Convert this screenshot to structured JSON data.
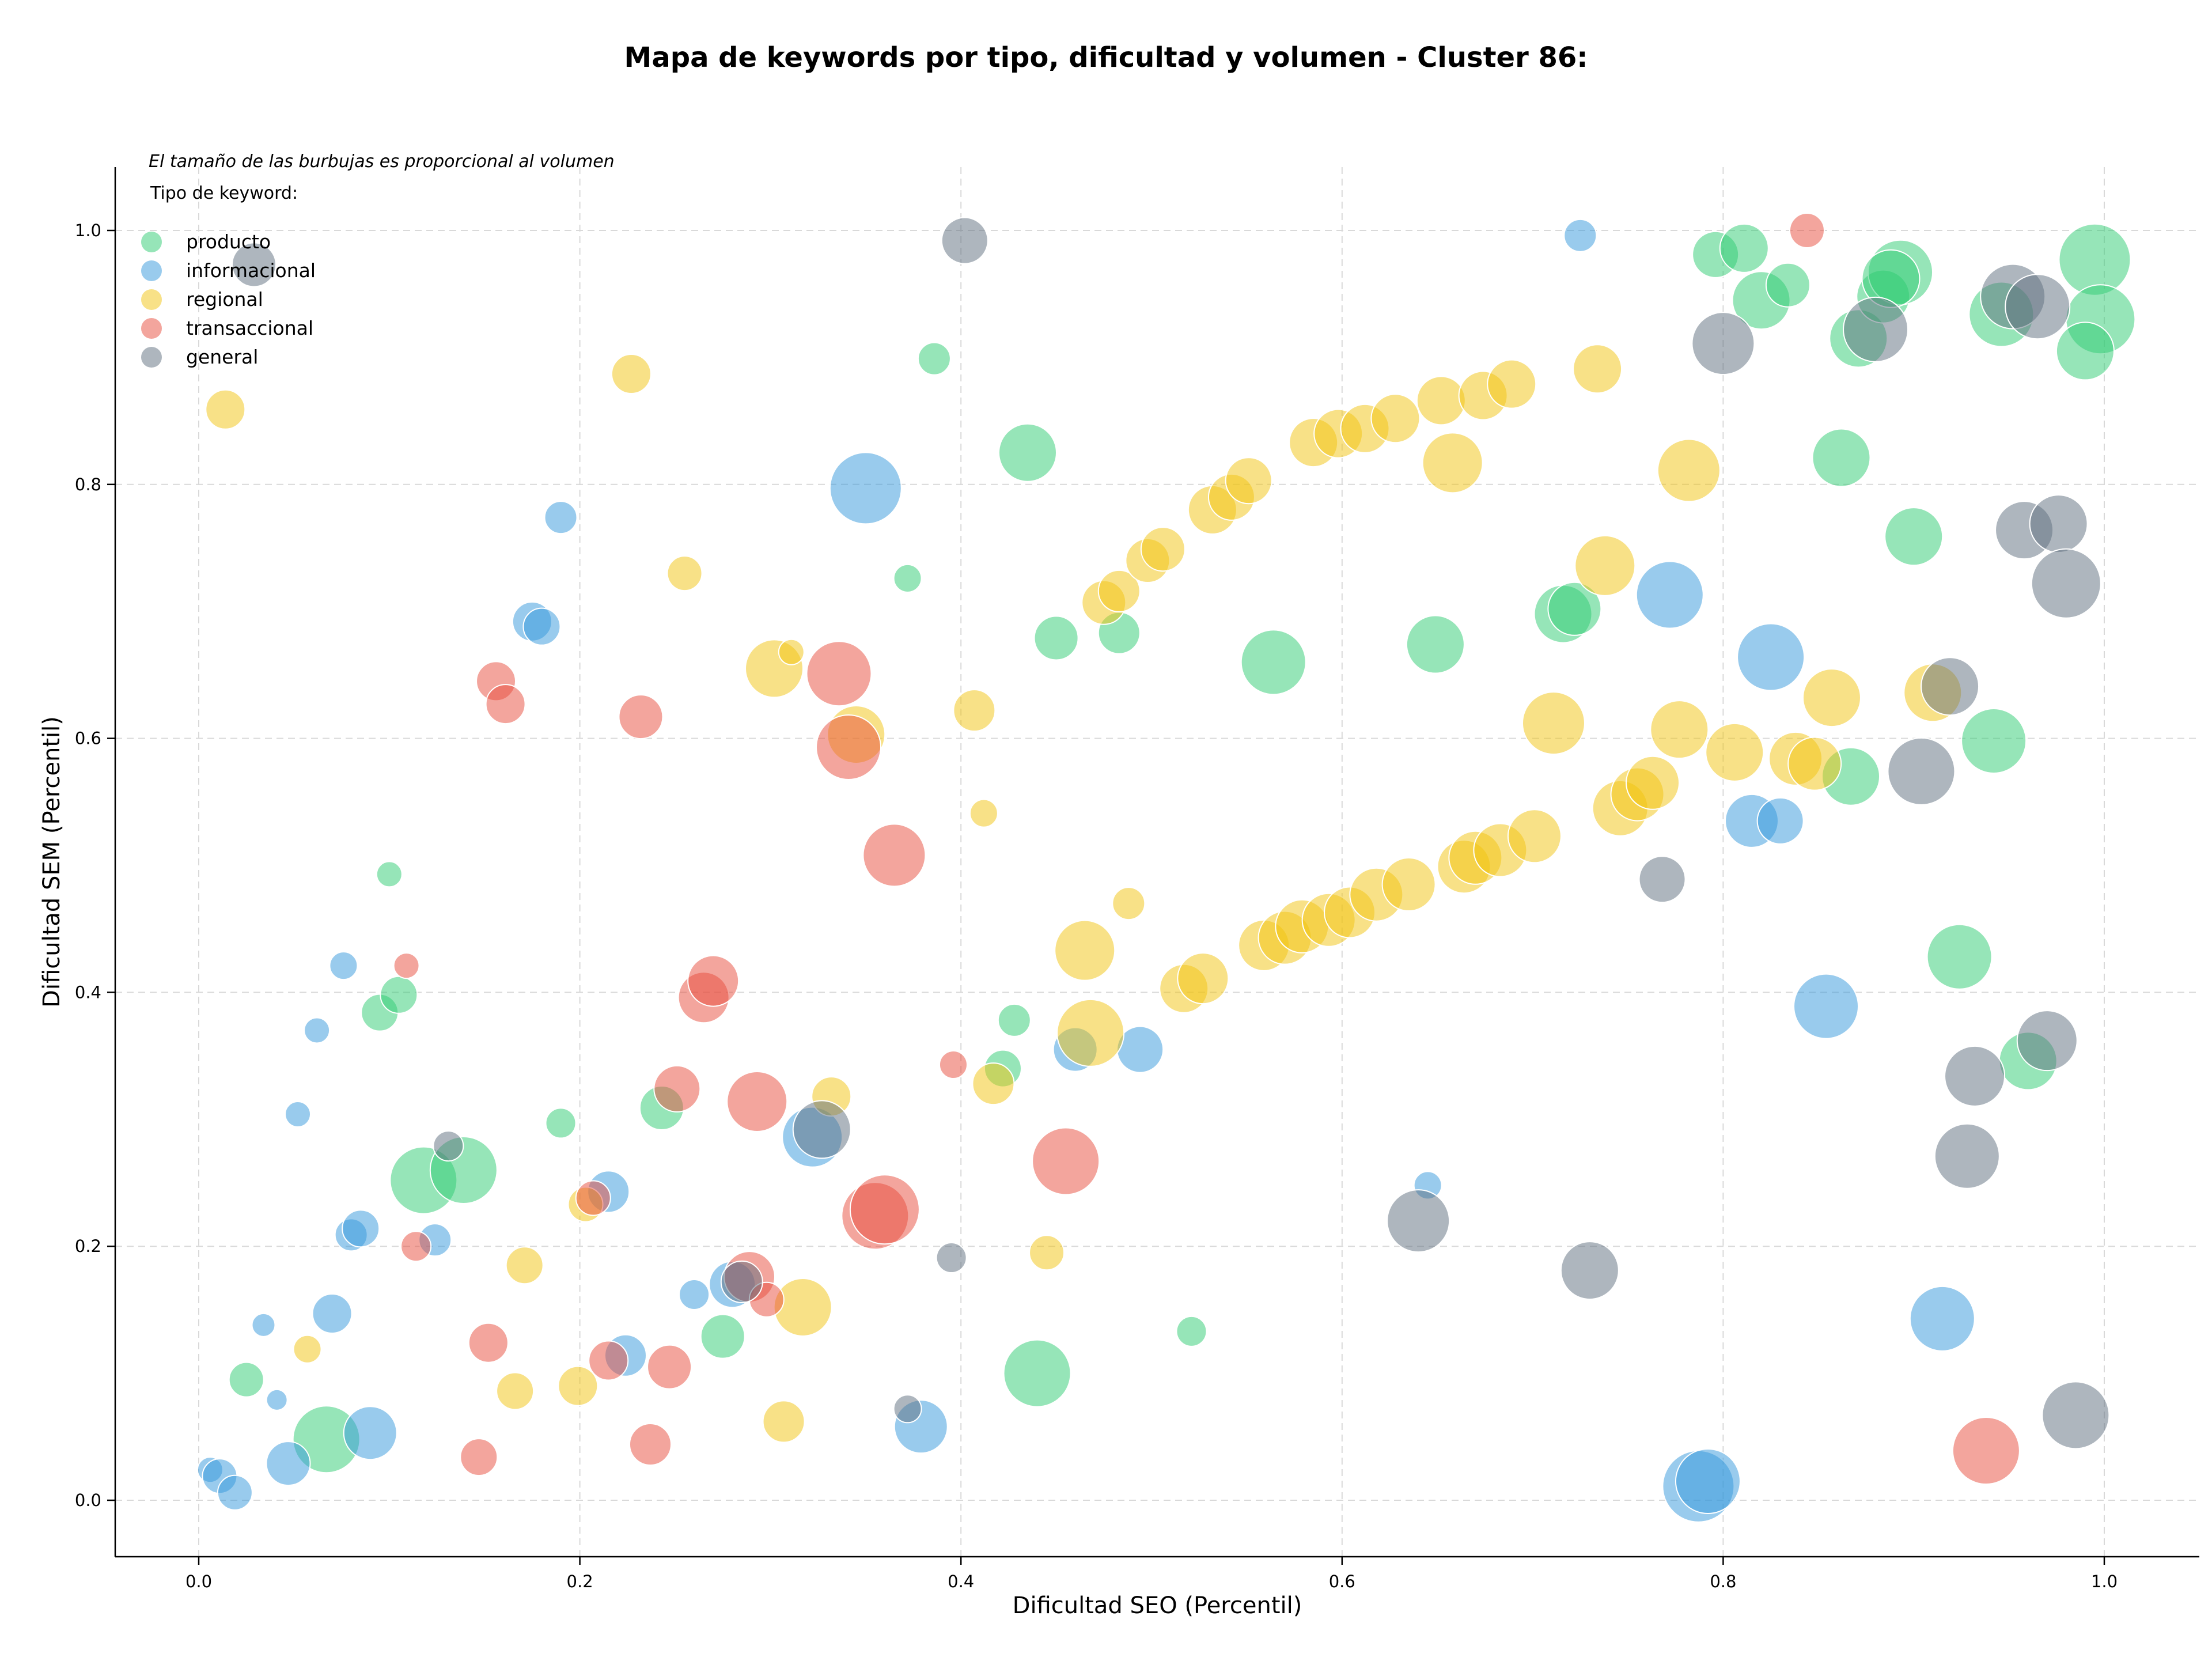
{
  "chart_data": {
    "type": "scatter",
    "title": "Mapa de keywords por tipo, dificultad y volumen - Cluster 86:",
    "xlabel": "Dificultad SEO (Percentil)",
    "ylabel": "Dificultad SEM (Percentil)",
    "xlim": [
      -0.045,
      1.05
    ],
    "ylim": [
      -0.045,
      1.05
    ],
    "xticks": [
      "0.0",
      "0.2",
      "0.4",
      "0.6",
      "0.8",
      "1.0"
    ],
    "yticks": [
      "0.0",
      "0.2",
      "0.4",
      "0.6",
      "0.8",
      "1.0"
    ],
    "grid": true,
    "note": "El tamaño de las burbujas es proporcional al volumen",
    "legend_title": "Tipo de keyword:",
    "legend_position": "top-left",
    "size_encoding": "volumen",
    "series": [
      {
        "name": "producto",
        "color": "#2ecc71",
        "points": [
          {
            "x": 0.118,
            "y": 0.252,
            "s": 58
          },
          {
            "x": 0.139,
            "y": 0.26,
            "s": 58
          },
          {
            "x": 0.067,
            "y": 0.048,
            "s": 58
          },
          {
            "x": 0.025,
            "y": 0.095,
            "s": 30
          },
          {
            "x": 0.1,
            "y": 0.493,
            "s": 22
          },
          {
            "x": 0.095,
            "y": 0.384,
            "s": 32
          },
          {
            "x": 0.105,
            "y": 0.398,
            "s": 32
          },
          {
            "x": 0.243,
            "y": 0.309,
            "s": 38
          },
          {
            "x": 0.275,
            "y": 0.129,
            "s": 38
          },
          {
            "x": 0.19,
            "y": 0.297,
            "s": 26
          },
          {
            "x": 0.386,
            "y": 0.899,
            "s": 28
          },
          {
            "x": 0.372,
            "y": 0.726,
            "s": 24
          },
          {
            "x": 0.435,
            "y": 0.825,
            "s": 50
          },
          {
            "x": 0.45,
            "y": 0.679,
            "s": 38
          },
          {
            "x": 0.483,
            "y": 0.683,
            "s": 36
          },
          {
            "x": 0.428,
            "y": 0.378,
            "s": 28
          },
          {
            "x": 0.422,
            "y": 0.34,
            "s": 32
          },
          {
            "x": 0.44,
            "y": 0.1,
            "s": 58
          },
          {
            "x": 0.521,
            "y": 0.133,
            "s": 26
          },
          {
            "x": 0.564,
            "y": 0.66,
            "s": 56
          },
          {
            "x": 0.649,
            "y": 0.674,
            "s": 50
          },
          {
            "x": 0.716,
            "y": 0.698,
            "s": 50
          },
          {
            "x": 0.722,
            "y": 0.702,
            "s": 46
          },
          {
            "x": 0.796,
            "y": 0.981,
            "s": 40
          },
          {
            "x": 0.811,
            "y": 0.986,
            "s": 42
          },
          {
            "x": 0.82,
            "y": 0.945,
            "s": 50
          },
          {
            "x": 0.834,
            "y": 0.957,
            "s": 38
          },
          {
            "x": 0.862,
            "y": 0.821,
            "s": 50
          },
          {
            "x": 0.867,
            "y": 0.57,
            "s": 50
          },
          {
            "x": 0.871,
            "y": 0.915,
            "s": 50
          },
          {
            "x": 0.884,
            "y": 0.948,
            "s": 46
          },
          {
            "x": 0.893,
            "y": 0.967,
            "s": 56
          },
          {
            "x": 0.888,
            "y": 0.962,
            "s": 50
          },
          {
            "x": 0.9,
            "y": 0.759,
            "s": 50
          },
          {
            "x": 0.924,
            "y": 0.428,
            "s": 56
          },
          {
            "x": 0.942,
            "y": 0.598,
            "s": 56
          },
          {
            "x": 0.946,
            "y": 0.934,
            "s": 56
          },
          {
            "x": 0.96,
            "y": 0.346,
            "s": 50
          },
          {
            "x": 0.995,
            "y": 0.977,
            "s": 62
          },
          {
            "x": 0.998,
            "y": 0.93,
            "s": 60
          },
          {
            "x": 0.99,
            "y": 0.905,
            "s": 50
          }
        ]
      },
      {
        "name": "informacional",
        "color": "#3498db",
        "points": [
          {
            "x": 0.006,
            "y": 0.024,
            "s": 22
          },
          {
            "x": 0.011,
            "y": 0.019,
            "s": 30
          },
          {
            "x": 0.019,
            "y": 0.006,
            "s": 30
          },
          {
            "x": 0.034,
            "y": 0.138,
            "s": 20
          },
          {
            "x": 0.041,
            "y": 0.079,
            "s": 18
          },
          {
            "x": 0.047,
            "y": 0.029,
            "s": 38
          },
          {
            "x": 0.052,
            "y": 0.304,
            "s": 22
          },
          {
            "x": 0.062,
            "y": 0.37,
            "s": 22
          },
          {
            "x": 0.07,
            "y": 0.147,
            "s": 34
          },
          {
            "x": 0.076,
            "y": 0.421,
            "s": 24
          },
          {
            "x": 0.08,
            "y": 0.209,
            "s": 28
          },
          {
            "x": 0.085,
            "y": 0.214,
            "s": 32
          },
          {
            "x": 0.09,
            "y": 0.053,
            "s": 46
          },
          {
            "x": 0.124,
            "y": 0.205,
            "s": 28
          },
          {
            "x": 0.175,
            "y": 0.692,
            "s": 34
          },
          {
            "x": 0.18,
            "y": 0.688,
            "s": 32
          },
          {
            "x": 0.19,
            "y": 0.774,
            "s": 28
          },
          {
            "x": 0.215,
            "y": 0.243,
            "s": 36
          },
          {
            "x": 0.224,
            "y": 0.114,
            "s": 36
          },
          {
            "x": 0.26,
            "y": 0.162,
            "s": 26
          },
          {
            "x": 0.28,
            "y": 0.17,
            "s": 40
          },
          {
            "x": 0.322,
            "y": 0.286,
            "s": 52
          },
          {
            "x": 0.35,
            "y": 0.797,
            "s": 62
          },
          {
            "x": 0.379,
            "y": 0.058,
            "s": 46
          },
          {
            "x": 0.46,
            "y": 0.355,
            "s": 38
          },
          {
            "x": 0.494,
            "y": 0.355,
            "s": 40
          },
          {
            "x": 0.645,
            "y": 0.248,
            "s": 24
          },
          {
            "x": 0.725,
            "y": 0.996,
            "s": 28
          },
          {
            "x": 0.772,
            "y": 0.713,
            "s": 58
          },
          {
            "x": 0.787,
            "y": 0.011,
            "s": 62
          },
          {
            "x": 0.792,
            "y": 0.015,
            "s": 56
          },
          {
            "x": 0.815,
            "y": 0.535,
            "s": 46
          },
          {
            "x": 0.83,
            "y": 0.535,
            "s": 40
          },
          {
            "x": 0.825,
            "y": 0.664,
            "s": 58
          },
          {
            "x": 0.854,
            "y": 0.389,
            "s": 56
          },
          {
            "x": 0.915,
            "y": 0.143,
            "s": 56
          }
        ]
      },
      {
        "name": "regional",
        "color": "#f1c40f",
        "points": [
          {
            "x": 0.014,
            "y": 0.859,
            "s": 34
          },
          {
            "x": 0.057,
            "y": 0.119,
            "s": 24
          },
          {
            "x": 0.166,
            "y": 0.086,
            "s": 32
          },
          {
            "x": 0.171,
            "y": 0.185,
            "s": 32
          },
          {
            "x": 0.199,
            "y": 0.09,
            "s": 34
          },
          {
            "x": 0.203,
            "y": 0.233,
            "s": 30
          },
          {
            "x": 0.227,
            "y": 0.887,
            "s": 34
          },
          {
            "x": 0.255,
            "y": 0.73,
            "s": 30
          },
          {
            "x": 0.302,
            "y": 0.655,
            "s": 50
          },
          {
            "x": 0.311,
            "y": 0.668,
            "s": 22
          },
          {
            "x": 0.307,
            "y": 0.062,
            "s": 36
          },
          {
            "x": 0.317,
            "y": 0.152,
            "s": 50
          },
          {
            "x": 0.332,
            "y": 0.318,
            "s": 34
          },
          {
            "x": 0.345,
            "y": 0.603,
            "s": 50
          },
          {
            "x": 0.407,
            "y": 0.622,
            "s": 36
          },
          {
            "x": 0.412,
            "y": 0.541,
            "s": 24
          },
          {
            "x": 0.417,
            "y": 0.328,
            "s": 36
          },
          {
            "x": 0.445,
            "y": 0.195,
            "s": 30
          },
          {
            "x": 0.465,
            "y": 0.433,
            "s": 52
          },
          {
            "x": 0.468,
            "y": 0.368,
            "s": 58
          },
          {
            "x": 0.488,
            "y": 0.47,
            "s": 28
          },
          {
            "x": 0.475,
            "y": 0.707,
            "s": 38
          },
          {
            "x": 0.483,
            "y": 0.716,
            "s": 36
          },
          {
            "x": 0.498,
            "y": 0.74,
            "s": 38
          },
          {
            "x": 0.506,
            "y": 0.749,
            "s": 38
          },
          {
            "x": 0.517,
            "y": 0.403,
            "s": 42
          },
          {
            "x": 0.527,
            "y": 0.411,
            "s": 44
          },
          {
            "x": 0.532,
            "y": 0.78,
            "s": 42
          },
          {
            "x": 0.542,
            "y": 0.79,
            "s": 40
          },
          {
            "x": 0.551,
            "y": 0.803,
            "s": 40
          },
          {
            "x": 0.559,
            "y": 0.437,
            "s": 44
          },
          {
            "x": 0.57,
            "y": 0.443,
            "s": 46
          },
          {
            "x": 0.579,
            "y": 0.452,
            "s": 46
          },
          {
            "x": 0.585,
            "y": 0.833,
            "s": 42
          },
          {
            "x": 0.593,
            "y": 0.457,
            "s": 46
          },
          {
            "x": 0.598,
            "y": 0.84,
            "s": 42
          },
          {
            "x": 0.604,
            "y": 0.463,
            "s": 44
          },
          {
            "x": 0.612,
            "y": 0.844,
            "s": 42
          },
          {
            "x": 0.618,
            "y": 0.477,
            "s": 46
          },
          {
            "x": 0.628,
            "y": 0.852,
            "s": 42
          },
          {
            "x": 0.635,
            "y": 0.485,
            "s": 46
          },
          {
            "x": 0.652,
            "y": 0.866,
            "s": 42
          },
          {
            "x": 0.658,
            "y": 0.817,
            "s": 52
          },
          {
            "x": 0.664,
            "y": 0.499,
            "s": 46
          },
          {
            "x": 0.67,
            "y": 0.506,
            "s": 46
          },
          {
            "x": 0.674,
            "y": 0.87,
            "s": 42
          },
          {
            "x": 0.683,
            "y": 0.512,
            "s": 46
          },
          {
            "x": 0.689,
            "y": 0.879,
            "s": 42
          },
          {
            "x": 0.701,
            "y": 0.523,
            "s": 46
          },
          {
            "x": 0.711,
            "y": 0.612,
            "s": 54
          },
          {
            "x": 0.734,
            "y": 0.891,
            "s": 42
          },
          {
            "x": 0.738,
            "y": 0.736,
            "s": 52
          },
          {
            "x": 0.746,
            "y": 0.545,
            "s": 48
          },
          {
            "x": 0.755,
            "y": 0.556,
            "s": 46
          },
          {
            "x": 0.763,
            "y": 0.565,
            "s": 46
          },
          {
            "x": 0.777,
            "y": 0.607,
            "s": 50
          },
          {
            "x": 0.782,
            "y": 0.811,
            "s": 54
          },
          {
            "x": 0.806,
            "y": 0.589,
            "s": 50
          },
          {
            "x": 0.838,
            "y": 0.584,
            "s": 46
          },
          {
            "x": 0.848,
            "y": 0.58,
            "s": 46
          },
          {
            "x": 0.857,
            "y": 0.632,
            "s": 50
          },
          {
            "x": 0.91,
            "y": 0.636,
            "s": 50
          }
        ]
      },
      {
        "name": "transaccional",
        "color": "#e74c3c",
        "points": [
          {
            "x": 0.109,
            "y": 0.421,
            "s": 22
          },
          {
            "x": 0.114,
            "y": 0.2,
            "s": 26
          },
          {
            "x": 0.147,
            "y": 0.034,
            "s": 32
          },
          {
            "x": 0.152,
            "y": 0.124,
            "s": 34
          },
          {
            "x": 0.156,
            "y": 0.645,
            "s": 34
          },
          {
            "x": 0.161,
            "y": 0.627,
            "s": 34
          },
          {
            "x": 0.207,
            "y": 0.238,
            "s": 30
          },
          {
            "x": 0.215,
            "y": 0.11,
            "s": 34
          },
          {
            "x": 0.232,
            "y": 0.617,
            "s": 38
          },
          {
            "x": 0.237,
            "y": 0.044,
            "s": 36
          },
          {
            "x": 0.247,
            "y": 0.105,
            "s": 38
          },
          {
            "x": 0.251,
            "y": 0.324,
            "s": 40
          },
          {
            "x": 0.265,
            "y": 0.396,
            "s": 44
          },
          {
            "x": 0.27,
            "y": 0.409,
            "s": 44
          },
          {
            "x": 0.289,
            "y": 0.176,
            "s": 44
          },
          {
            "x": 0.293,
            "y": 0.314,
            "s": 52
          },
          {
            "x": 0.298,
            "y": 0.158,
            "s": 30
          },
          {
            "x": 0.336,
            "y": 0.651,
            "s": 56
          },
          {
            "x": 0.341,
            "y": 0.593,
            "s": 56
          },
          {
            "x": 0.355,
            "y": 0.224,
            "s": 58
          },
          {
            "x": 0.36,
            "y": 0.229,
            "s": 60
          },
          {
            "x": 0.365,
            "y": 0.508,
            "s": 54
          },
          {
            "x": 0.396,
            "y": 0.343,
            "s": 24
          },
          {
            "x": 0.455,
            "y": 0.267,
            "s": 58
          },
          {
            "x": 0.844,
            "y": 1.0,
            "s": 30
          },
          {
            "x": 0.938,
            "y": 0.039,
            "s": 58
          }
        ]
      },
      {
        "name": "general",
        "color": "#5d6d7e",
        "points": [
          {
            "x": 0.029,
            "y": 0.973,
            "s": 38
          },
          {
            "x": 0.131,
            "y": 0.279,
            "s": 26
          },
          {
            "x": 0.285,
            "y": 0.172,
            "s": 36
          },
          {
            "x": 0.327,
            "y": 0.292,
            "s": 50
          },
          {
            "x": 0.372,
            "y": 0.072,
            "s": 24
          },
          {
            "x": 0.395,
            "y": 0.191,
            "s": 26
          },
          {
            "x": 0.402,
            "y": 0.992,
            "s": 40
          },
          {
            "x": 0.64,
            "y": 0.22,
            "s": 54
          },
          {
            "x": 0.73,
            "y": 0.181,
            "s": 50
          },
          {
            "x": 0.768,
            "y": 0.489,
            "s": 40
          },
          {
            "x": 0.8,
            "y": 0.911,
            "s": 54
          },
          {
            "x": 0.88,
            "y": 0.922,
            "s": 56
          },
          {
            "x": 0.904,
            "y": 0.574,
            "s": 58
          },
          {
            "x": 0.919,
            "y": 0.641,
            "s": 50
          },
          {
            "x": 0.928,
            "y": 0.271,
            "s": 56
          },
          {
            "x": 0.932,
            "y": 0.334,
            "s": 52
          },
          {
            "x": 0.952,
            "y": 0.948,
            "s": 56
          },
          {
            "x": 0.958,
            "y": 0.764,
            "s": 50
          },
          {
            "x": 0.965,
            "y": 0.94,
            "s": 56
          },
          {
            "x": 0.97,
            "y": 0.362,
            "s": 52
          },
          {
            "x": 0.976,
            "y": 0.769,
            "s": 50
          },
          {
            "x": 0.98,
            "y": 0.722,
            "s": 60
          },
          {
            "x": 0.985,
            "y": 0.067,
            "s": 58
          }
        ]
      }
    ]
  }
}
